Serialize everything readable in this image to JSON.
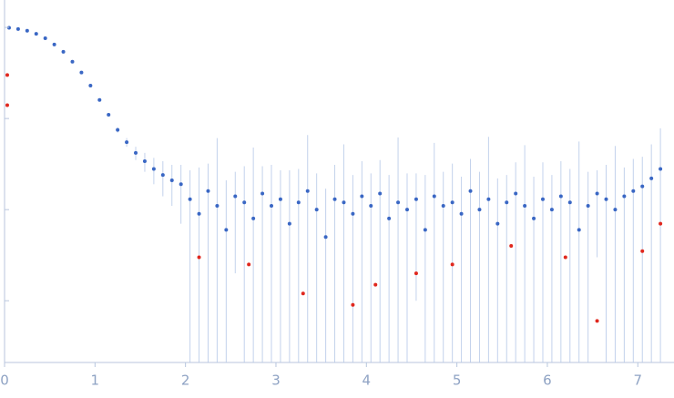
{
  "chart_data": {
    "type": "scatter",
    "log_y": true,
    "xlim": [
      -0.05,
      7.35
    ],
    "ylim": [
      0.00021,
      2
    ],
    "xticks": [
      0,
      1,
      2,
      3,
      4,
      5,
      6,
      7
    ],
    "yticks": [
      0.001,
      0.01,
      0.1,
      1
    ],
    "error_color": "#c3d2ec",
    "series": [
      {
        "color": "#3a67c4",
        "x": [
          0.05,
          0.15,
          0.25,
          0.35,
          0.45,
          0.55,
          0.65,
          0.75,
          0.85,
          0.95,
          1.05,
          1.15,
          1.25,
          1.35,
          1.45,
          1.55,
          1.65,
          1.75,
          1.85,
          1.95,
          2.05,
          2.15,
          2.25,
          2.35,
          2.45,
          2.55,
          2.65,
          2.75,
          2.85,
          2.95,
          3.05,
          3.15,
          3.25,
          3.35,
          3.45,
          3.55,
          3.65,
          3.75,
          3.85,
          3.95,
          4.05,
          4.15,
          4.25,
          4.35,
          4.45,
          4.55,
          4.65,
          4.75,
          4.85,
          4.95,
          5.05,
          5.15,
          5.25,
          5.35,
          5.45,
          5.55,
          5.65,
          5.75,
          5.85,
          5.95,
          6.05,
          6.15,
          6.25,
          6.35,
          6.45,
          6.55,
          6.65,
          6.75,
          6.85,
          6.95,
          7.05,
          7.15,
          7.25
        ],
        "values": [
          0.99,
          0.96,
          0.92,
          0.85,
          0.76,
          0.65,
          0.54,
          0.42,
          0.32,
          0.23,
          0.16,
          0.11,
          0.075,
          0.055,
          0.042,
          0.034,
          0.028,
          0.024,
          0.021,
          0.019,
          0.013,
          0.009,
          0.016,
          0.011,
          0.006,
          0.014,
          0.012,
          0.008,
          0.015,
          0.011,
          0.013,
          0.007,
          0.012,
          0.016,
          0.01,
          0.005,
          0.013,
          0.012,
          0.009,
          0.014,
          0.011,
          0.015,
          0.008,
          0.012,
          0.01,
          0.013,
          0.006,
          0.014,
          0.011,
          0.012,
          0.009,
          0.016,
          0.01,
          0.013,
          0.007,
          0.012,
          0.015,
          0.011,
          0.008,
          0.013,
          0.01,
          0.014,
          0.012,
          0.006,
          0.011,
          0.015,
          0.013,
          0.01,
          0.014,
          0.016,
          0.018,
          0.022,
          0.028
        ],
        "errors": [
          0.01,
          0.01,
          0.01,
          0.01,
          0.01,
          0.01,
          0.01,
          0.01,
          0.01,
          0.008,
          0.006,
          0.005,
          0.005,
          0.006,
          0.007,
          0.008,
          0.009,
          0.01,
          0.01,
          0.012,
          0.014,
          0.02,
          0.016,
          0.05,
          0.015,
          0.012,
          0.018,
          0.04,
          0.015,
          0.02,
          0.014,
          0.02,
          0.016,
          0.05,
          0.015,
          0.012,
          0.018,
          0.04,
          0.015,
          0.02,
          0.014,
          0.02,
          0.016,
          0.05,
          0.015,
          0.012,
          0.018,
          0.04,
          0.015,
          0.02,
          0.014,
          0.02,
          0.016,
          0.05,
          0.015,
          0.012,
          0.018,
          0.04,
          0.015,
          0.02,
          0.014,
          0.02,
          0.016,
          0.05,
          0.015,
          0.012,
          0.018,
          0.04,
          0.015,
          0.02,
          0.02,
          0.03,
          0.05
        ]
      },
      {
        "color": "#e0281e",
        "x": [
          0.03,
          0.03,
          2.15,
          2.7,
          3.3,
          3.85,
          4.1,
          4.55,
          4.95,
          5.6,
          6.2,
          6.55,
          7.05,
          7.25
        ],
        "values": [
          0.3,
          0.14,
          0.003,
          0.0025,
          0.0012,
          0.0009,
          0.0015,
          0.002,
          0.0025,
          0.004,
          0.003,
          0.0006,
          0.0035,
          0.007
        ]
      }
    ]
  }
}
